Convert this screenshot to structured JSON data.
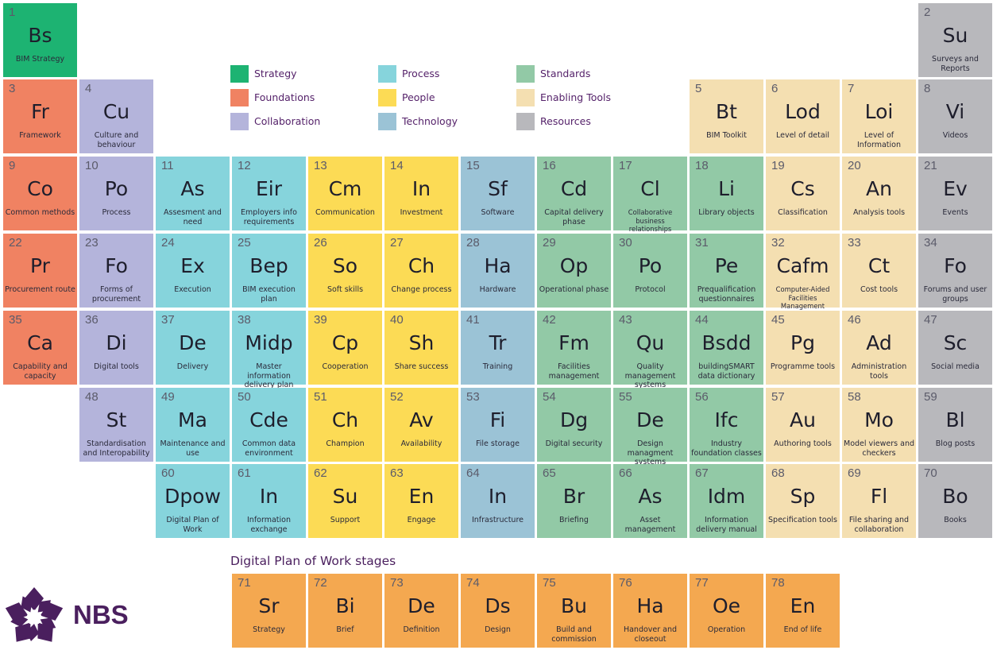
{
  "legend": [
    {
      "key": "strategy",
      "label": "Strategy",
      "color": "#1db372"
    },
    {
      "key": "foundations",
      "label": "Foundations",
      "color": "#f08262"
    },
    {
      "key": "collaboration",
      "label": "Collaboration",
      "color": "#b4b4db"
    },
    {
      "key": "process",
      "label": "Process",
      "color": "#86d4dc"
    },
    {
      "key": "people",
      "label": "People",
      "color": "#fcdb55"
    },
    {
      "key": "technology",
      "label": "Technology",
      "color": "#9bc3d6"
    },
    {
      "key": "standards",
      "label": "Standards",
      "color": "#92c9a6"
    },
    {
      "key": "tools",
      "label": "Enabling Tools",
      "color": "#f4dfb1"
    },
    {
      "key": "resources",
      "label": "Resources",
      "color": "#b8b8bc"
    }
  ],
  "elements": [
    {
      "n": "1",
      "sym": "Bs",
      "name": "BIM Strategy",
      "cat": "strategy"
    },
    {
      "n": "2",
      "sym": "Su",
      "name": "Surveys and Reports",
      "cat": "resources"
    },
    {
      "n": "3",
      "sym": "Fr",
      "name": "Framework",
      "cat": "foundations"
    },
    {
      "n": "4",
      "sym": "Cu",
      "name": "Culture and behaviour",
      "cat": "collaboration"
    },
    {
      "n": "5",
      "sym": "Bt",
      "name": "BIM Toolkit",
      "cat": "tools"
    },
    {
      "n": "6",
      "sym": "Lod",
      "name": "Level of detail",
      "cat": "tools"
    },
    {
      "n": "7",
      "sym": "Loi",
      "name": "Level of Information",
      "cat": "tools"
    },
    {
      "n": "8",
      "sym": "Vi",
      "name": "Videos",
      "cat": "resources"
    },
    {
      "n": "9",
      "sym": "Co",
      "name": "Common methods",
      "cat": "foundations"
    },
    {
      "n": "10",
      "sym": "Po",
      "name": "Process",
      "cat": "collaboration"
    },
    {
      "n": "11",
      "sym": "As",
      "name": "Assesment and need",
      "cat": "process"
    },
    {
      "n": "12",
      "sym": "Eir",
      "name": "Employers info requirements",
      "cat": "process"
    },
    {
      "n": "13",
      "sym": "Cm",
      "name": "Communication",
      "cat": "people"
    },
    {
      "n": "14",
      "sym": "In",
      "name": "Investment",
      "cat": "people"
    },
    {
      "n": "15",
      "sym": "Sf",
      "name": "Software",
      "cat": "technology"
    },
    {
      "n": "16",
      "sym": "Cd",
      "name": "Capital delivery phase",
      "cat": "standards"
    },
    {
      "n": "17",
      "sym": "Cl",
      "name": "Collaborative business relationships",
      "cat": "standards",
      "small": true
    },
    {
      "n": "18",
      "sym": "Li",
      "name": "Library objects",
      "cat": "standards"
    },
    {
      "n": "19",
      "sym": "Cs",
      "name": "Classification",
      "cat": "tools"
    },
    {
      "n": "20",
      "sym": "An",
      "name": "Analysis tools",
      "cat": "tools"
    },
    {
      "n": "21",
      "sym": "Ev",
      "name": "Events",
      "cat": "resources"
    },
    {
      "n": "22",
      "sym": "Pr",
      "name": "Procurement route",
      "cat": "foundations"
    },
    {
      "n": "23",
      "sym": "Fo",
      "name": "Forms of procurement",
      "cat": "collaboration"
    },
    {
      "n": "24",
      "sym": "Ex",
      "name": "Execution",
      "cat": "process"
    },
    {
      "n": "25",
      "sym": "Bep",
      "name": "BIM execution plan",
      "cat": "process"
    },
    {
      "n": "26",
      "sym": "So",
      "name": "Soft skills",
      "cat": "people"
    },
    {
      "n": "27",
      "sym": "Ch",
      "name": "Change process",
      "cat": "people"
    },
    {
      "n": "28",
      "sym": "Ha",
      "name": "Hardware",
      "cat": "technology"
    },
    {
      "n": "29",
      "sym": "Op",
      "name": "Operational phase",
      "cat": "standards"
    },
    {
      "n": "30",
      "sym": "Po",
      "name": "Protocol",
      "cat": "standards"
    },
    {
      "n": "31",
      "sym": "Pe",
      "name": "Prequalification questionnaires",
      "cat": "standards"
    },
    {
      "n": "32",
      "sym": "Cafm",
      "name": "Computer-Aided Facilities Management",
      "cat": "tools",
      "small": true
    },
    {
      "n": "33",
      "sym": "Ct",
      "name": "Cost tools",
      "cat": "tools"
    },
    {
      "n": "34",
      "sym": "Fo",
      "name": "Forums and user groups",
      "cat": "resources"
    },
    {
      "n": "35",
      "sym": "Ca",
      "name": "Capability and capacity",
      "cat": "foundations"
    },
    {
      "n": "36",
      "sym": "Di",
      "name": "Digital tools",
      "cat": "collaboration"
    },
    {
      "n": "37",
      "sym": "De",
      "name": "Delivery",
      "cat": "process"
    },
    {
      "n": "38",
      "sym": "Midp",
      "name": "Master information delivery plan",
      "cat": "process"
    },
    {
      "n": "39",
      "sym": "Cp",
      "name": "Cooperation",
      "cat": "people"
    },
    {
      "n": "40",
      "sym": "Sh",
      "name": "Share success",
      "cat": "people"
    },
    {
      "n": "41",
      "sym": "Tr",
      "name": "Training",
      "cat": "technology"
    },
    {
      "n": "42",
      "sym": "Fm",
      "name": "Facilities management",
      "cat": "standards"
    },
    {
      "n": "43",
      "sym": "Qu",
      "name": "Quality management systems",
      "cat": "standards"
    },
    {
      "n": "44",
      "sym": "Bsdd",
      "name": "buildingSMART data dictionary",
      "cat": "standards"
    },
    {
      "n": "45",
      "sym": "Pg",
      "name": "Programme tools",
      "cat": "tools"
    },
    {
      "n": "46",
      "sym": "Ad",
      "name": "Administration tools",
      "cat": "tools"
    },
    {
      "n": "47",
      "sym": "Sc",
      "name": "Social media",
      "cat": "resources"
    },
    {
      "n": "48",
      "sym": "St",
      "name": "Standardisation and Interopability",
      "cat": "collaboration"
    },
    {
      "n": "49",
      "sym": "Ma",
      "name": "Maintenance and use",
      "cat": "process"
    },
    {
      "n": "50",
      "sym": "Cde",
      "name": "Common data environment",
      "cat": "process"
    },
    {
      "n": "51",
      "sym": "Ch",
      "name": "Champion",
      "cat": "people"
    },
    {
      "n": "52",
      "sym": "Av",
      "name": "Availability",
      "cat": "people"
    },
    {
      "n": "53",
      "sym": "Fi",
      "name": "File storage",
      "cat": "technology"
    },
    {
      "n": "54",
      "sym": "Dg",
      "name": "Digital security",
      "cat": "standards"
    },
    {
      "n": "55",
      "sym": "De",
      "name": "Design managment systems",
      "cat": "standards"
    },
    {
      "n": "56",
      "sym": "Ifc",
      "name": "Industry foundation classes",
      "cat": "standards"
    },
    {
      "n": "57",
      "sym": "Au",
      "name": "Authoring tools",
      "cat": "tools"
    },
    {
      "n": "58",
      "sym": "Mo",
      "name": "Model viewers and checkers",
      "cat": "tools"
    },
    {
      "n": "59",
      "sym": "Bl",
      "name": "Blog posts",
      "cat": "resources"
    },
    {
      "n": "60",
      "sym": "Dpow",
      "name": "Digital Plan of Work",
      "cat": "process"
    },
    {
      "n": "61",
      "sym": "In",
      "name": "Information exchange",
      "cat": "process"
    },
    {
      "n": "62",
      "sym": "Su",
      "name": "Support",
      "cat": "people"
    },
    {
      "n": "63",
      "sym": "En",
      "name": "Engage",
      "cat": "people"
    },
    {
      "n": "64",
      "sym": "In",
      "name": "Infrastructure",
      "cat": "technology"
    },
    {
      "n": "65",
      "sym": "Br",
      "name": "Briefing",
      "cat": "standards"
    },
    {
      "n": "66",
      "sym": "As",
      "name": "Asset management",
      "cat": "standards"
    },
    {
      "n": "67",
      "sym": "Idm",
      "name": "Information delivery manual",
      "cat": "standards"
    },
    {
      "n": "68",
      "sym": "Sp",
      "name": "Specification tools",
      "cat": "tools"
    },
    {
      "n": "69",
      "sym": "Fl",
      "name": "File sharing and collaboration",
      "cat": "tools"
    },
    {
      "n": "70",
      "sym": "Bo",
      "name": "Books",
      "cat": "resources"
    }
  ],
  "stages_title": "Digital Plan of Work stages",
  "stages": [
    {
      "n": "71",
      "sym": "Sr",
      "name": "Strategy",
      "cat": "dpow"
    },
    {
      "n": "72",
      "sym": "Bi",
      "name": "Brief",
      "cat": "dpow"
    },
    {
      "n": "73",
      "sym": "De",
      "name": "Definition",
      "cat": "dpow"
    },
    {
      "n": "74",
      "sym": "Ds",
      "name": "Design",
      "cat": "dpow"
    },
    {
      "n": "75",
      "sym": "Bu",
      "name": "Build and commission",
      "cat": "dpow"
    },
    {
      "n": "76",
      "sym": "Ha",
      "name": "Handover and closeout",
      "cat": "dpow"
    },
    {
      "n": "77",
      "sym": "Oe",
      "name": "Operation",
      "cat": "dpow"
    },
    {
      "n": "78",
      "sym": "En",
      "name": "End of life",
      "cat": "dpow"
    }
  ],
  "brand": {
    "logo_text": "NBS",
    "logo_color": "#4a1f5e"
  }
}
